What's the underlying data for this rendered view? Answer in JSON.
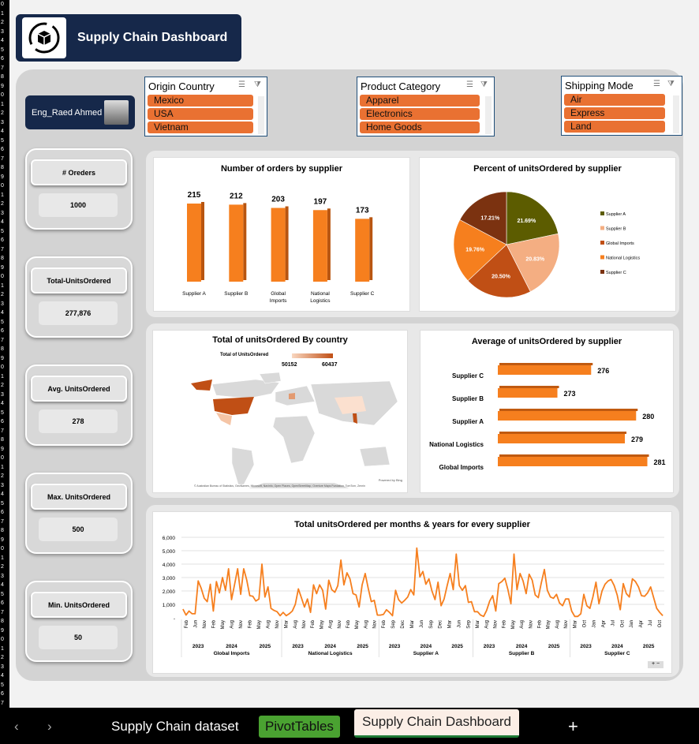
{
  "title": "Supply Chain Dashboard",
  "author": "Eng_Raed Ahmed",
  "kpis": [
    {
      "label": "# Oreders",
      "value": "1000"
    },
    {
      "label": "Total-UnitsOrdered",
      "value": "277,876"
    },
    {
      "label": "Avg. UnitsOrdered",
      "value": "278"
    },
    {
      "label": "Max. UnitsOrdered",
      "value": "500"
    },
    {
      "label": "Min. UnitsOrdered",
      "value": "50"
    }
  ],
  "slicers": [
    {
      "title": "Origin Country",
      "items": [
        "Mexico",
        "USA",
        "Vietnam"
      ]
    },
    {
      "title": "Product Category",
      "items": [
        "Apparel",
        "Electronics",
        "Home Goods"
      ]
    },
    {
      "title": "Shipping Mode",
      "items": [
        "Air",
        "Express",
        "Land"
      ]
    }
  ],
  "colors": {
    "accent": "#f67f1e",
    "navy": "#16284a",
    "slicer_item": "#e97132"
  },
  "chart_data": [
    {
      "type": "bar",
      "title": "Number of orders by supplier",
      "categories": [
        "Supplier A",
        "Supplier B",
        "Global Imports",
        "National Logistics",
        "Supplier C"
      ],
      "values": [
        215,
        212,
        203,
        197,
        173
      ],
      "ylim": [
        0,
        215
      ]
    },
    {
      "type": "pie",
      "title": "Percent of unitsOrdered by supplier",
      "categories": [
        "Supplier A",
        "Supplier B",
        "Global Imports",
        "National Logistics",
        "Supplier C"
      ],
      "values": [
        21.69,
        20.83,
        20.5,
        19.76,
        17.21
      ],
      "labels": [
        "21.69%",
        "20.83%",
        "20.50%",
        "19.76%",
        "17.21%"
      ],
      "colors": [
        "#5c5c00",
        "#f4ae82",
        "#c04f15",
        "#f67f1e",
        "#7b3210"
      ],
      "legend": "right"
    },
    {
      "type": "map",
      "title": "Total of unitsOrdered By country",
      "legend_title": "Total of UnitsOrdered",
      "min": "50152",
      "max": "60437",
      "credit1": "Powered by Bing",
      "credit2": "© Australian Bureau of Statistics, GeoNames, Microsoft, Navinfo, Open Places, OpenStreetMap, Overture Maps Fundation, TomTom, Zenrin"
    },
    {
      "type": "bar",
      "orientation": "horizontal",
      "title": "Average of unitsOrdered by supplier",
      "categories": [
        "Supplier C",
        "Supplier B",
        "Supplier A",
        "National Logistics",
        "Global Imports"
      ],
      "values": [
        276,
        273,
        280,
        279,
        281
      ]
    },
    {
      "type": "line",
      "title": "Total unitsOrdered per months & years for every supplier",
      "yticks": [
        "6,000",
        "5,000",
        "4,000",
        "3,000",
        "2,000",
        "1,000",
        "-"
      ],
      "ylim": [
        0,
        6000
      ],
      "series": [
        {
          "name": "Global Imports",
          "years": [
            "2023",
            "2024",
            "2025"
          ],
          "months": [
            "Feb",
            "Jun",
            "Nov",
            "Feb",
            "May",
            "Aug",
            "Nov",
            "Feb",
            "May",
            "Aug",
            "Nov"
          ],
          "values": [
            650,
            200,
            500,
            300,
            300,
            2750,
            2200,
            1450,
            1200,
            2500,
            500,
            2700,
            1850,
            3000,
            2050,
            3650,
            1350,
            2500,
            3650,
            1750,
            3650,
            2800,
            1650,
            1600,
            1250,
            1400,
            4000,
            1550,
            2300,
            700,
            550,
            450,
            150
          ]
        },
        {
          "name": "National Logistics",
          "years": [
            "2023",
            "2024",
            "2025"
          ],
          "months": [
            "Mar",
            "Aug",
            "Nov",
            "Feb",
            "May",
            "Aug",
            "Nov",
            "Feb",
            "May",
            "Aug",
            "Nov"
          ],
          "values": [
            400,
            150,
            300,
            500,
            1000,
            2150,
            1500,
            800,
            1400,
            400,
            2450,
            1800,
            2450,
            2050,
            650,
            2800,
            2100,
            1900,
            2400,
            4300,
            2450,
            3350,
            2900,
            1800,
            1700,
            800,
            2450,
            3300,
            2200,
            1200,
            1300,
            200
          ]
        },
        {
          "name": "Supplier A",
          "years": [
            "2023",
            "2024",
            "2025"
          ],
          "months": [
            "Feb",
            "Sep",
            "Dec",
            "Mar",
            "Jun",
            "Sep",
            "Dec",
            "Mar",
            "Jun",
            "Sep"
          ],
          "values": [
            200,
            250,
            600,
            400,
            150,
            2050,
            1350,
            1100,
            1300,
            1550,
            2100,
            1700,
            5200,
            3050,
            3450,
            2500,
            2900,
            2000,
            1350,
            2650,
            900,
            1400,
            2400,
            3300,
            2100,
            4750,
            2400,
            2050,
            2400,
            1150,
            1200
          ]
        },
        {
          "name": "Supplier B",
          "years": [
            "2023",
            "2024",
            "2025"
          ],
          "months": [
            "Mar",
            "Aug",
            "Nov",
            "Feb",
            "May",
            "Aug",
            "Nov",
            "Feb",
            "May",
            "Aug",
            "Nov"
          ],
          "values": [
            450,
            450,
            200,
            100,
            550,
            1250,
            1650,
            500,
            2550,
            2700,
            2950,
            2100,
            1050,
            4750,
            2100,
            3300,
            2750,
            1800,
            3250,
            2800,
            1700,
            1500,
            2600,
            3600,
            2050,
            1550,
            1450,
            1750,
            1100,
            900,
            1400,
            1400
          ]
        },
        {
          "name": "Supplier C",
          "years": [
            "2023",
            "2024",
            "2025"
          ],
          "months": [
            "Mar",
            "Oct",
            "Jan",
            "Apr",
            "Jul",
            "Oct",
            "Jan",
            "Apr",
            "Jul",
            "Oct"
          ],
          "values": [
            500,
            100,
            100,
            300,
            1750,
            900,
            700,
            1550,
            2650,
            1050,
            2000,
            2500,
            2750,
            2850,
            2400,
            1700,
            600,
            2550,
            1800,
            1550,
            2900,
            2700,
            2300,
            1650,
            1600,
            1850,
            2300,
            1500,
            700,
            400,
            150
          ]
        }
      ]
    }
  ],
  "tabs": {
    "sheets": [
      "Supply Chain dataset",
      "PivotTables",
      "Supply Chain Dashboard"
    ],
    "add": "+",
    "prev": "‹",
    "next": "›"
  }
}
